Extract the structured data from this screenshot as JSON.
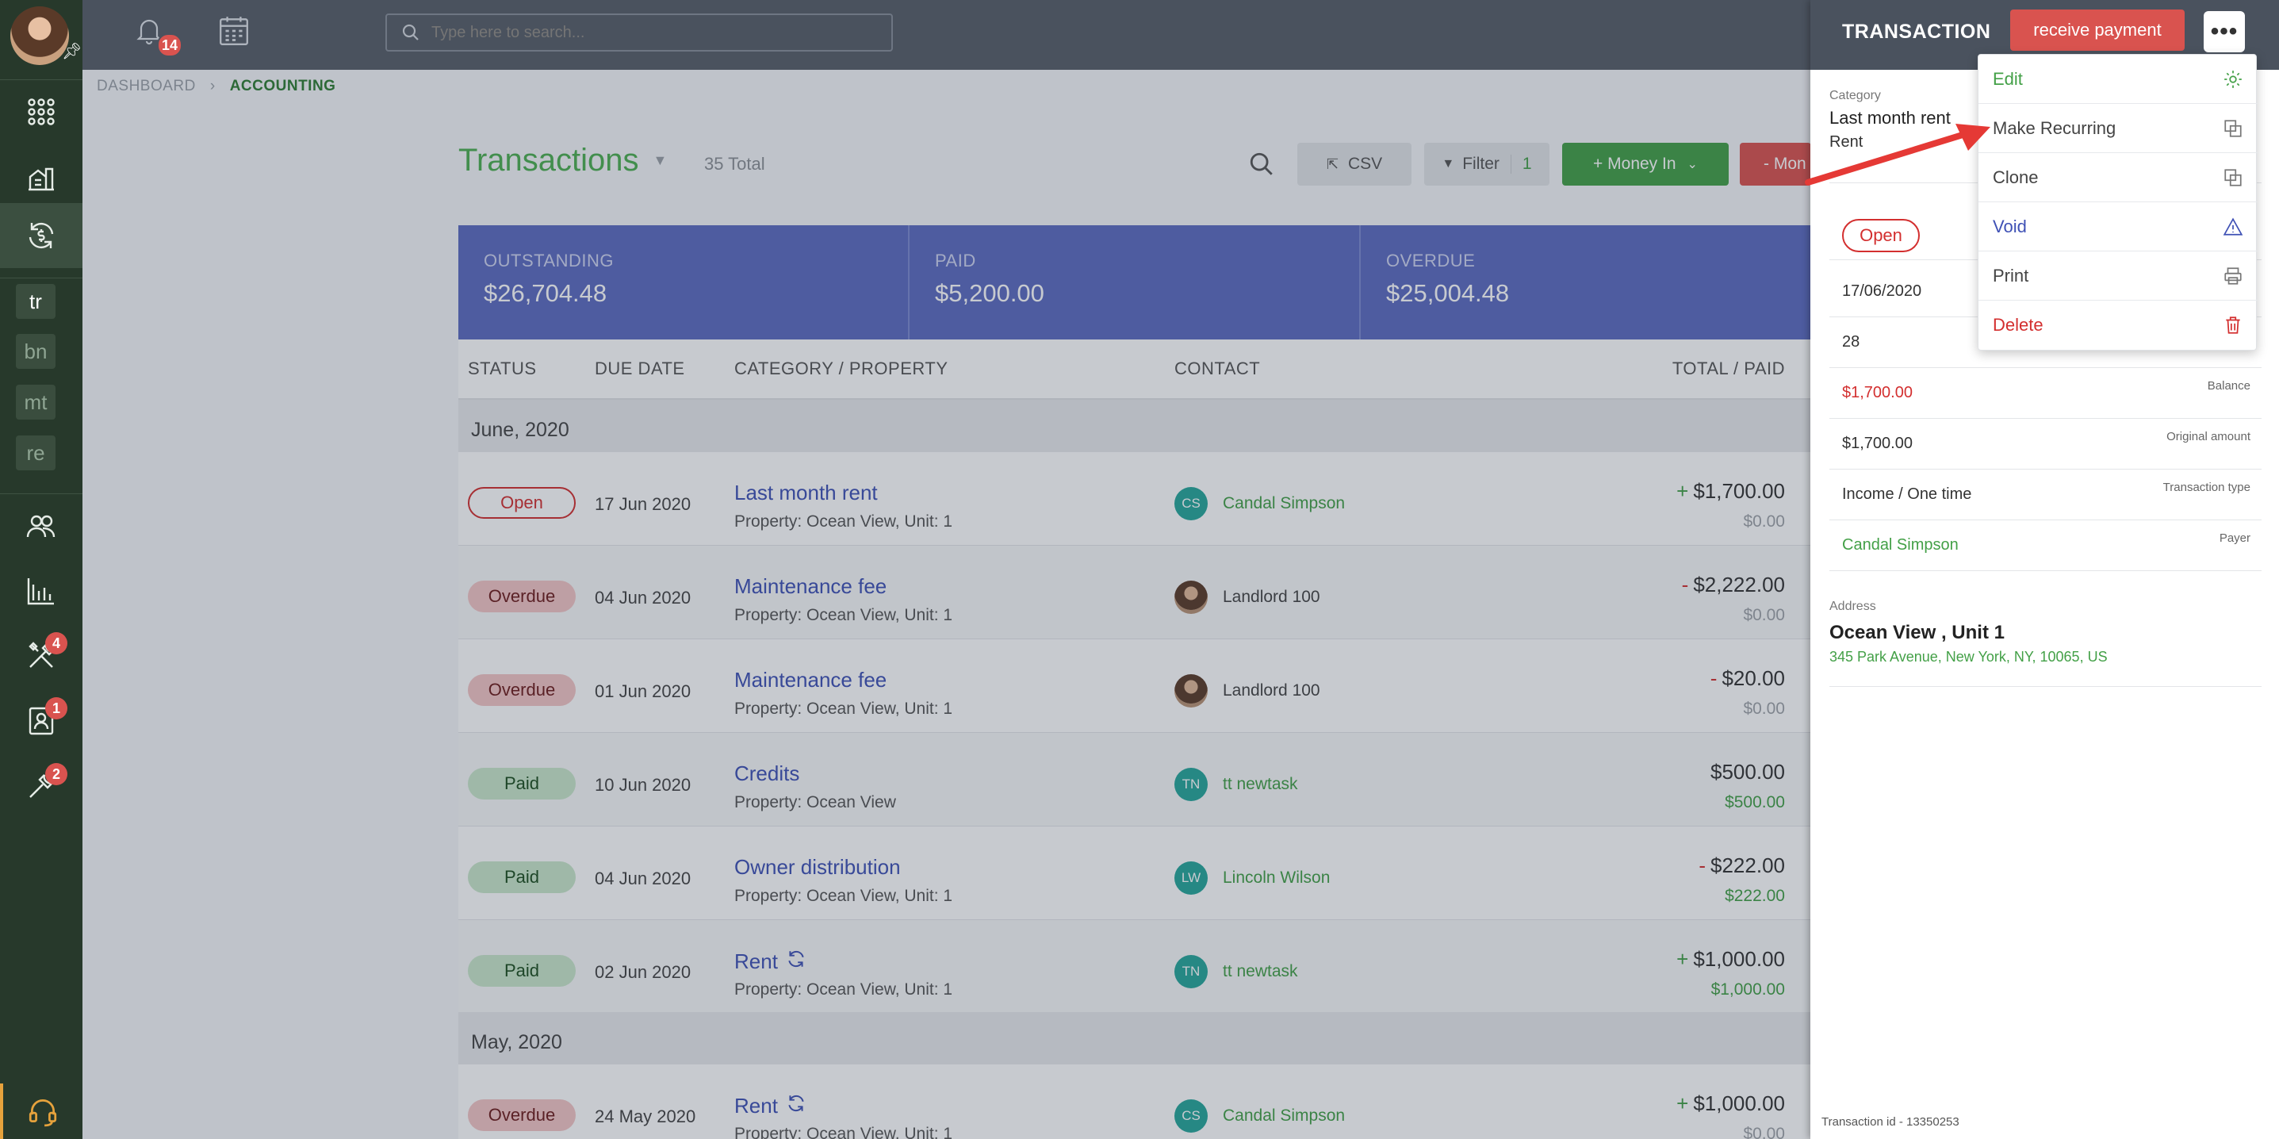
{
  "topbar": {
    "notifications_count": "14",
    "search_placeholder": "Type here to search..."
  },
  "sidebar": {
    "text_items": [
      "tr",
      "bn",
      "mt",
      "re"
    ],
    "badges": {
      "tools": "4",
      "contacts": "1",
      "maintenance": "2"
    }
  },
  "breadcrumb": {
    "items": [
      "DASHBOARD",
      "ACCOUNTING"
    ]
  },
  "page": {
    "title": "Transactions",
    "total": "35 Total",
    "csv": "CSV",
    "filter": "Filter",
    "filter_count": "1",
    "money_in": "+ Money In",
    "money_out": "- Mon"
  },
  "summary": {
    "outstanding_label": "OUTSTANDING",
    "outstanding": "$26,704.48",
    "paid_label": "PAID",
    "paid": "$5,200.00",
    "overdue_label": "OVERDUE",
    "overdue": "$25,004.48"
  },
  "table": {
    "headers": [
      "STATUS",
      "DUE DATE",
      "CATEGORY / PROPERTY",
      "CONTACT",
      "TOTAL / PAID"
    ],
    "months": [
      "June, 2020",
      "May, 2020"
    ],
    "rows": [
      {
        "status": "Open",
        "due": "17 Jun 2020",
        "category": "Last month rent",
        "property": "Property: Ocean View, Unit: 1",
        "initials": "CS",
        "contact": "Candal Simpson",
        "sign": "+",
        "total": "$1,700.00",
        "paid": "$0.00"
      },
      {
        "status": "Overdue",
        "due": "04 Jun 2020",
        "category": "Maintenance fee",
        "property": "Property: Ocean View, Unit: 1",
        "initials": "",
        "contact": "Landlord 100",
        "sign": "-",
        "total": "$2,222.00",
        "paid": "$0.00"
      },
      {
        "status": "Overdue",
        "due": "01 Jun 2020",
        "category": "Maintenance fee",
        "property": "Property: Ocean View, Unit: 1",
        "initials": "",
        "contact": "Landlord 100",
        "sign": "-",
        "total": "$20.00",
        "paid": "$0.00"
      },
      {
        "status": "Paid",
        "due": "10 Jun 2020",
        "category": "Credits",
        "property": "Property: Ocean View",
        "initials": "TN",
        "contact": "tt newtask",
        "sign": "",
        "total": "$500.00",
        "paid": "$500.00"
      },
      {
        "status": "Paid",
        "due": "04 Jun 2020",
        "category": "Owner distribution",
        "property": "Property: Ocean View, Unit: 1",
        "initials": "LW",
        "contact": "Lincoln Wilson",
        "sign": "-",
        "total": "$222.00",
        "paid": "$222.00"
      },
      {
        "status": "Paid",
        "due": "02 Jun 2020",
        "category": "Rent",
        "property": "Property: Ocean View, Unit: 1",
        "initials": "TN",
        "contact": "tt newtask",
        "sign": "+",
        "total": "$1,000.00",
        "paid": "$1,000.00"
      },
      {
        "status": "Overdue",
        "due": "24 May 2020",
        "category": "Rent",
        "property": "Property: Ocean View, Unit: 1",
        "initials": "CS",
        "contact": "Candal Simpson",
        "sign": "+",
        "total": "$1,000.00",
        "paid": "$0.00"
      }
    ]
  },
  "panel": {
    "title": "TRANSACTION",
    "receive_payment": "receive payment",
    "more": "•••",
    "category_label": "Category",
    "category_value": "Last month rent",
    "category_sub": "Rent",
    "status": "Open",
    "date": "17/06/2020",
    "number": "28",
    "balance": "$1,700.00",
    "balance_label": "Balance",
    "original": "$1,700.00",
    "original_label": "Original amount",
    "type": "Income / One time",
    "type_label": "Transaction type",
    "payer": "Candal Simpson",
    "payer_label": "Payer",
    "address_label": "Address",
    "address_name": "Ocean View , Unit 1",
    "address_line": "345 Park Avenue, New York, NY, 10065, US",
    "transaction_id": "Transaction id - 13350253"
  },
  "menu": {
    "edit": "Edit",
    "recurring": "Make Recurring",
    "clone": "Clone",
    "void": "Void",
    "print": "Print",
    "delete": "Delete"
  },
  "colors": {
    "accent_green": "#43a047",
    "danger": "#d9534f",
    "summary_blue": "#5c6bc0",
    "link_blue": "#3f51b5"
  }
}
